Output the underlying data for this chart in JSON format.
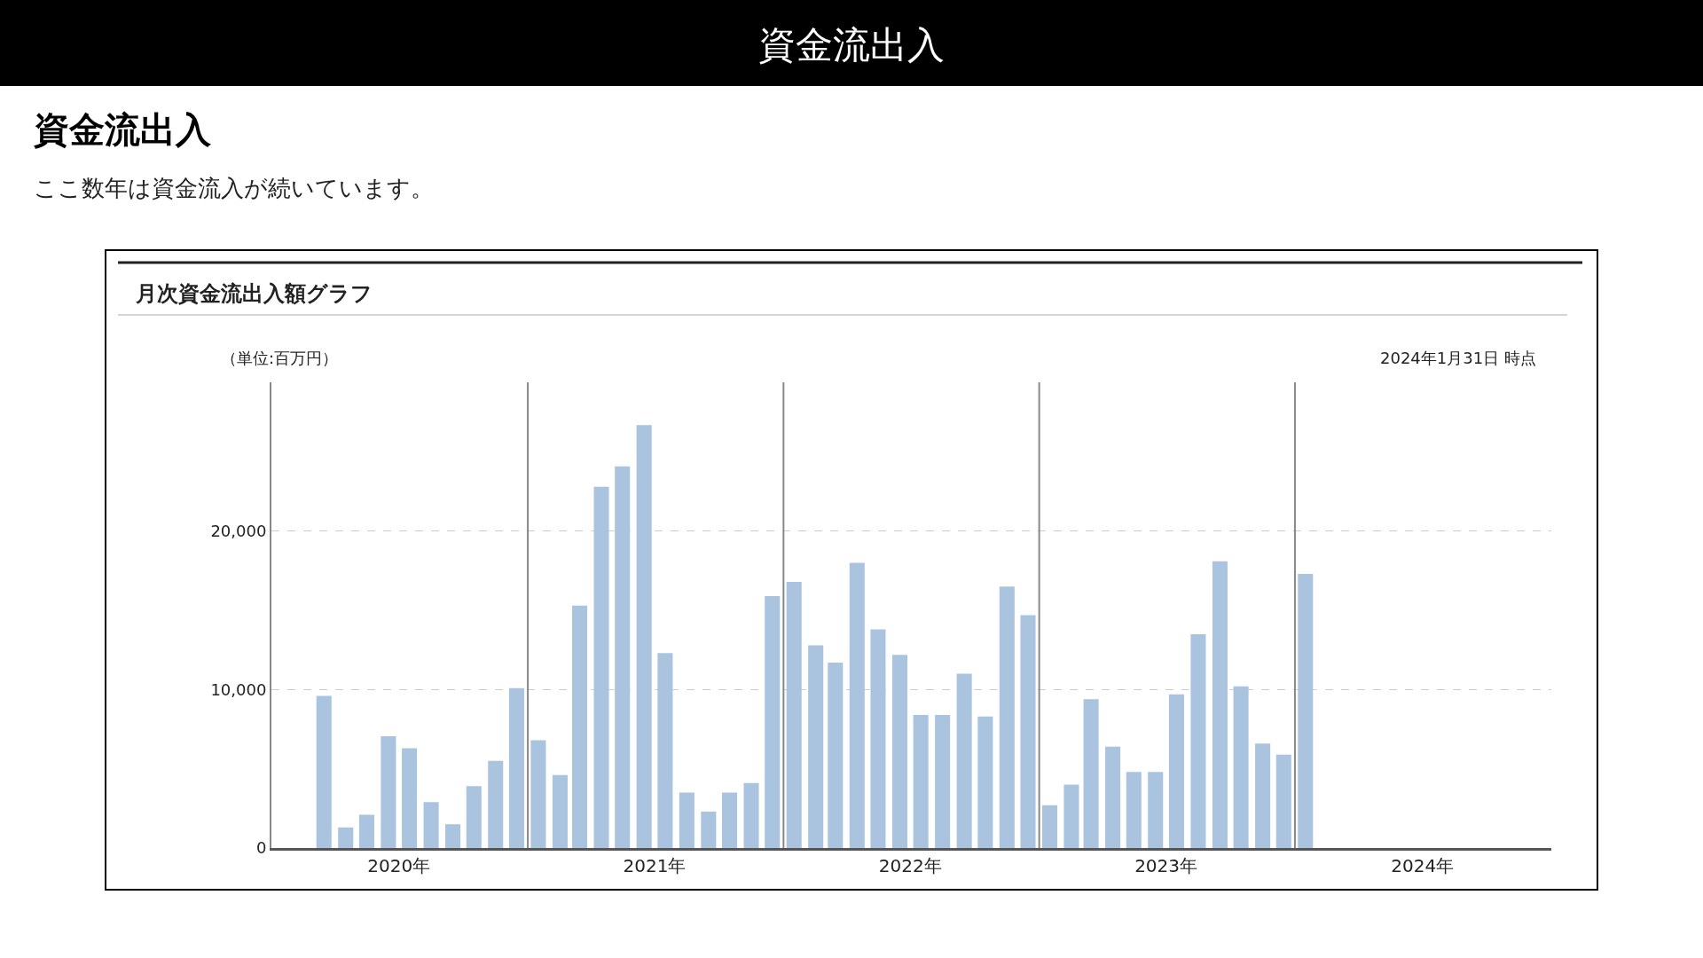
{
  "chart_data": {
    "type": "bar",
    "title": "資金流出入",
    "subtitle": "資金流出入",
    "annotations": [
      "ここ数年は資金流入が続いています。",
      "月次資金流出入額グラフ",
      "2024年1月31日 時点"
    ],
    "ylabel": "（単位:百万円）",
    "x": [
      "2020-03-16",
      "2020-04-16",
      "2020-05-16",
      "2020-06-16",
      "2020-07-16",
      "2020-08-16",
      "2020-09-16",
      "2020-10-16",
      "2020-11-16",
      "2020-12-16",
      "2021-01-16",
      "2021-02-16",
      "2021-03-16",
      "2021-04-16",
      "2021-05-16",
      "2021-06-16",
      "2021-07-16",
      "2021-08-16",
      "2021-09-16",
      "2021-10-16",
      "2021-11-16",
      "2021-12-16",
      "2022-01-16",
      "2022-02-16",
      "2022-03-16",
      "2022-04-16",
      "2022-05-16",
      "2022-06-16",
      "2022-07-16",
      "2022-08-16",
      "2022-09-16",
      "2022-10-16",
      "2022-11-16",
      "2022-12-16",
      "2023-01-16",
      "2023-02-16",
      "2023-03-16",
      "2023-04-16",
      "2023-05-16",
      "2023-06-16",
      "2023-07-16",
      "2023-08-16",
      "2023-09-16",
      "2023-10-16",
      "2023-11-16",
      "2023-12-16",
      "2024-01-16"
    ],
    "values": [
      9600,
      1300,
      2100,
      7050,
      6300,
      2900,
      1500,
      3900,
      5500,
      10100,
      6800,
      4600,
      15300,
      22800,
      24100,
      26700,
      12300,
      3500,
      2300,
      3500,
      4100,
      15900,
      16800,
      12800,
      11700,
      18000,
      13800,
      12200,
      8400,
      8400,
      11000,
      8300,
      16500,
      14700,
      2700,
      4000,
      9400,
      6400,
      4800,
      4800,
      9700,
      13500,
      18100,
      10200,
      6600,
      5900,
      17300
    ],
    "color": "#aac3de",
    "xlim": [
      "2020-01-01",
      "2025-01-01"
    ],
    "xticks": [
      {
        "value": "2020-07-01",
        "label": "2020年"
      },
      {
        "value": "2021-07-01",
        "label": "2021年"
      },
      {
        "value": "2022-07-01",
        "label": "2022年"
      },
      {
        "value": "2023-07-01",
        "label": "2023年"
      },
      {
        "value": "2024-07-01",
        "label": "2024年"
      }
    ],
    "ylim": [
      0,
      29400
    ],
    "yticks": [
      {
        "value": 0,
        "label": "0"
      },
      {
        "value": 10000,
        "label": "10,000"
      },
      {
        "value": 20000,
        "label": "20,000"
      }
    ],
    "grid": "y",
    "ref_lines": [
      {
        "axis": "x",
        "value": "2021-01-01",
        "label": null,
        "color": "#888888"
      },
      {
        "axis": "x",
        "value": "2022-01-01",
        "label": null,
        "color": "#888888"
      },
      {
        "axis": "x",
        "value": "2023-01-01",
        "label": null,
        "color": "#888888"
      },
      {
        "axis": "x",
        "value": "2024-01-01",
        "label": null,
        "color": "#888888"
      }
    ]
  }
}
